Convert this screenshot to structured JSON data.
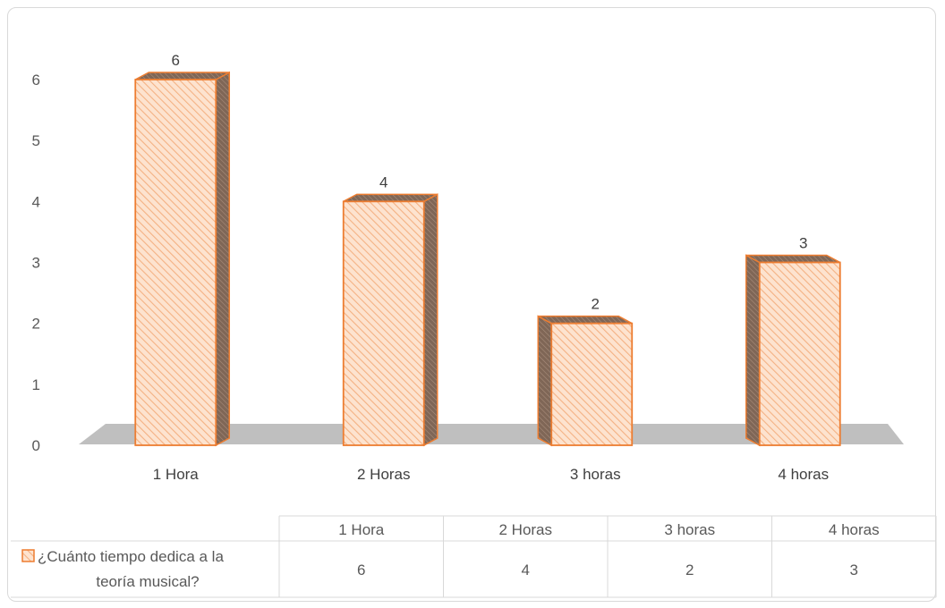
{
  "chart_data": {
    "type": "bar",
    "categories": [
      "1 Hora",
      "2 Horas",
      "3 horas",
      "4 horas"
    ],
    "series": [
      {
        "name": "¿Cuánto tiempo dedica a la teoría musical?",
        "values": [
          6,
          4,
          2,
          3
        ]
      }
    ],
    "series_label_lines": [
      "¿Cuánto tiempo dedica a la",
      "teoría musical?"
    ],
    "ylim": [
      0,
      6
    ],
    "yticks": [
      0,
      1,
      2,
      3,
      4,
      5,
      6
    ],
    "grid": false,
    "data_table": true,
    "colors": {
      "bar_fill": "#fde3cf",
      "bar_hatch": "#f4b183",
      "bar_outline": "#ed7d31",
      "bar_side": "#7f6656",
      "floor": "#bfbfbf"
    }
  }
}
